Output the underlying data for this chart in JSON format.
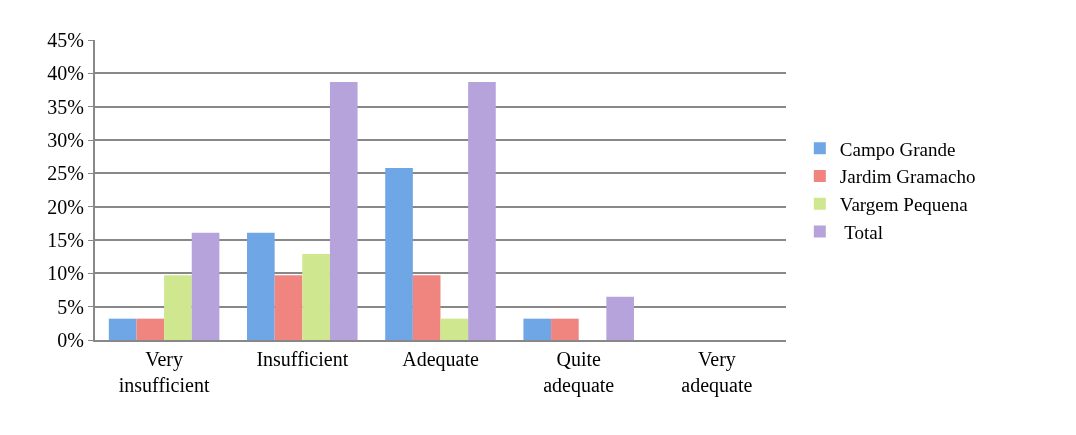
{
  "chart_data": {
    "type": "bar",
    "categories": [
      "Very\ninsufficient",
      "Insufficient",
      "Adequate",
      "Quite\nadequate",
      "Very\nadequate"
    ],
    "series": [
      {
        "name": "Campo Grande",
        "color": "#6fa6e6",
        "values": [
          3.2,
          16.1,
          25.8,
          3.2,
          0
        ]
      },
      {
        "name": "Jardim Gramacho",
        "color": "#f08580",
        "values": [
          3.2,
          9.7,
          9.7,
          3.2,
          0
        ]
      },
      {
        "name": "Vargem Pequena",
        "color": "#cfe78f",
        "values": [
          9.7,
          12.9,
          3.2,
          0,
          0
        ]
      },
      {
        "name": " Total",
        "color": "#b7a3dc",
        "values": [
          16.1,
          38.7,
          38.7,
          6.5,
          0
        ]
      }
    ],
    "ylim": [
      0,
      45
    ],
    "yticks": [
      {
        "value": 0,
        "label": "0%"
      },
      {
        "value": 5,
        "label": "5%"
      },
      {
        "value": 10,
        "label": "10%"
      },
      {
        "value": 15,
        "label": "15%"
      },
      {
        "value": 20,
        "label": "20%"
      },
      {
        "value": 25,
        "label": "25%"
      },
      {
        "value": 30,
        "label": "30%"
      },
      {
        "value": 35,
        "label": "35%"
      },
      {
        "value": 40,
        "label": "40%"
      },
      {
        "value": 45,
        "label": "45%"
      }
    ],
    "grid": "y",
    "legend": "right"
  }
}
